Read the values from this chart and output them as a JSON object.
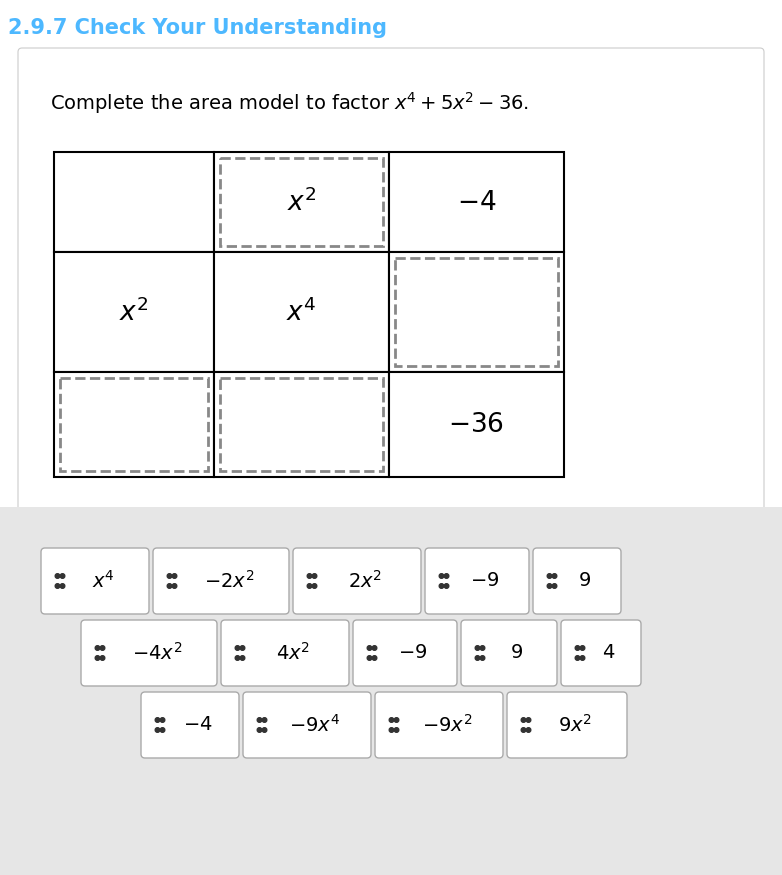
{
  "title": "2.9.7 Check Your Understanding",
  "title_color": "#4db8ff",
  "grid_cells": [
    [
      "",
      "$x^2$",
      "$-4$"
    ],
    [
      "$x^2$",
      "$x^4$",
      ""
    ],
    [
      "",
      "",
      "$-36$"
    ]
  ],
  "dashed_inner": [
    [
      false,
      true,
      false
    ],
    [
      false,
      false,
      true
    ],
    [
      true,
      true,
      false
    ]
  ],
  "outer_solid": [
    [
      true,
      true,
      true
    ],
    [
      true,
      true,
      true
    ],
    [
      true,
      true,
      true
    ]
  ],
  "tile_rows": [
    [
      "$x^4$",
      "$-2x^2$",
      "$2x^2$",
      "$-9$",
      "$9$"
    ],
    [
      "$-4x^2$",
      "$4x^2$",
      "$-9$",
      "$9$",
      "$4$"
    ],
    [
      "$-4$",
      "$-9x^4$",
      "$-9x^2$",
      "$9x^2$"
    ]
  ]
}
